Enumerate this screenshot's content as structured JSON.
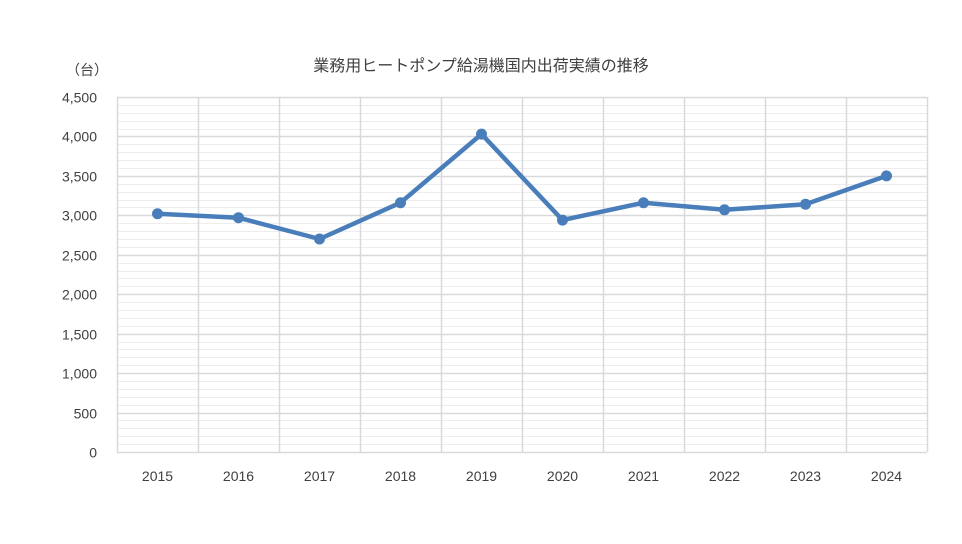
{
  "chart_data": {
    "type": "line",
    "title": "業務用ヒートポンプ給湯機国内出荷実績の推移",
    "unit_label": "（台）",
    "categories": [
      "2015",
      "2016",
      "2017",
      "2018",
      "2019",
      "2020",
      "2021",
      "2022",
      "2023",
      "2024"
    ],
    "series": [
      {
        "values": [
          3020,
          2970,
          2700,
          3160,
          4030,
          2940,
          3160,
          3070,
          3140,
          3500
        ]
      }
    ],
    "ylim": [
      0,
      4500
    ],
    "y_ticks": [
      "0",
      "500",
      "1,000",
      "1,500",
      "2,000",
      "2,500",
      "3,000",
      "3,500",
      "4,000",
      "4,500"
    ],
    "y_tick_values": [
      0,
      500,
      1000,
      1500,
      2000,
      2500,
      3000,
      3500,
      4000,
      4500
    ],
    "minor_gridline_step": 100,
    "grid": true,
    "legend": "none",
    "colors": {
      "line": "#4a7ebb",
      "major_grid": "#d9d9d9",
      "minor_grid": "#ededed",
      "text": "#404040"
    }
  }
}
